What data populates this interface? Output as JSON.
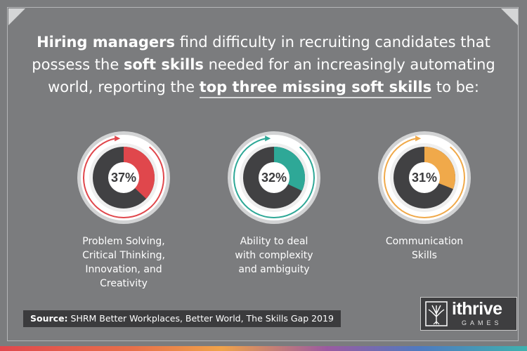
{
  "headline": {
    "l1_b1": "Hiring managers",
    "l1_t1": " find difficulty in recruiting candidates that",
    "l2_t1": "possess the ",
    "l2_b1": "soft skills",
    "l2_t2": " needed for an increasingly automating",
    "l3_t1": "world, reporting the ",
    "l3_u1": "top three missing soft skills",
    "l3_t2": " to be:"
  },
  "chart_data": {
    "type": "pie",
    "unit": "%",
    "items": [
      {
        "value": 37,
        "label": "37%",
        "label_lines": [
          "Problem Solving,",
          "Critical Thinking,",
          "Innovation, and",
          "Creativity"
        ],
        "color": "#e0474c"
      },
      {
        "value": 32,
        "label": "32%",
        "label_lines": [
          "Ability to deal",
          "with complexity",
          "and ambiguity"
        ],
        "color": "#2ea897"
      },
      {
        "value": 31,
        "label": "31%",
        "label_lines": [
          "Communication",
          "Skills"
        ],
        "color": "#f0a94a"
      }
    ]
  },
  "source": {
    "prefix": "Source:",
    "text": " SHRM Better Workplaces, Better World, The Skills Gap 2019"
  },
  "logo": {
    "word": "ithrive",
    "sub": "GAMES"
  },
  "colors": {
    "background": "#7b7c7e",
    "donut_dark": "#414143",
    "donut_track": "#efefef"
  }
}
